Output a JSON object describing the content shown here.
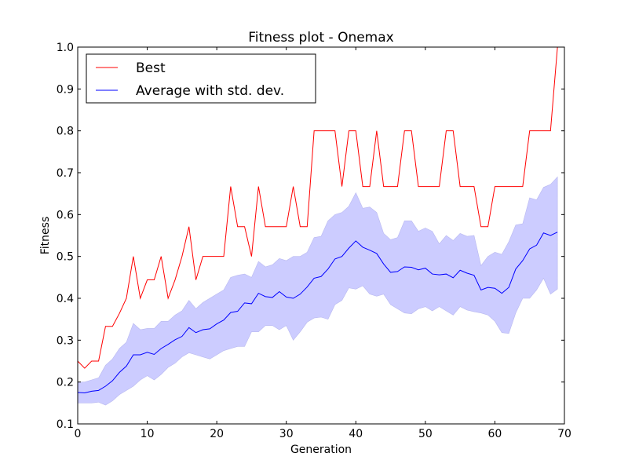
{
  "chart_data": {
    "type": "line",
    "title": "Fitness plot - Onemax",
    "xlabel": "Generation",
    "ylabel": "Fitness",
    "xlim": [
      0,
      70
    ],
    "ylim": [
      0.1,
      1.0
    ],
    "xticks": [
      0,
      10,
      20,
      30,
      40,
      50,
      60,
      70
    ],
    "yticks": [
      0.1,
      0.2,
      0.3,
      0.4,
      0.5,
      0.6,
      0.7,
      0.8,
      0.9,
      1.0
    ],
    "xtick_labels": [
      "0",
      "10",
      "20",
      "30",
      "40",
      "50",
      "60",
      "70"
    ],
    "ytick_labels": [
      "0.1",
      "0.2",
      "0.3",
      "0.4",
      "0.5",
      "0.6",
      "0.7",
      "0.8",
      "0.9",
      "1.0"
    ],
    "grid": false,
    "legend_position": "top-left",
    "x": [
      0,
      1,
      2,
      3,
      4,
      5,
      6,
      7,
      8,
      9,
      10,
      11,
      12,
      13,
      14,
      15,
      16,
      17,
      18,
      19,
      20,
      21,
      22,
      23,
      24,
      25,
      26,
      27,
      28,
      29,
      30,
      31,
      32,
      33,
      34,
      35,
      36,
      37,
      38,
      39,
      40,
      41,
      42,
      43,
      44,
      45,
      46,
      47,
      48,
      49,
      50,
      51,
      52,
      53,
      54,
      55,
      56,
      57,
      58,
      59,
      60,
      61,
      62,
      63,
      64,
      65,
      66,
      67,
      68,
      69
    ],
    "series": [
      {
        "name": "Best",
        "color": "#ff0000",
        "values": [
          0.25,
          0.233,
          0.25,
          0.25,
          0.333,
          0.333,
          0.364,
          0.4,
          0.5,
          0.4,
          0.444,
          0.444,
          0.5,
          0.4,
          0.444,
          0.5,
          0.571,
          0.444,
          0.5,
          0.5,
          0.5,
          0.5,
          0.667,
          0.571,
          0.571,
          0.5,
          0.667,
          0.571,
          0.571,
          0.571,
          0.571,
          0.667,
          0.571,
          0.571,
          0.8,
          0.8,
          0.8,
          0.8,
          0.667,
          0.8,
          0.8,
          0.667,
          0.667,
          0.8,
          0.667,
          0.667,
          0.667,
          0.8,
          0.8,
          0.667,
          0.667,
          0.667,
          0.667,
          0.8,
          0.8,
          0.667,
          0.667,
          0.667,
          0.571,
          0.571,
          0.667,
          0.667,
          0.667,
          0.667,
          0.667,
          0.8,
          0.8,
          0.8,
          0.8,
          1.0
        ]
      },
      {
        "name": "Average with std. dev.",
        "color": "#0000ff",
        "band_color": "#ccccff",
        "values": [
          0.175,
          0.174,
          0.178,
          0.18,
          0.19,
          0.203,
          0.223,
          0.238,
          0.265,
          0.265,
          0.271,
          0.266,
          0.28,
          0.29,
          0.301,
          0.309,
          0.33,
          0.318,
          0.325,
          0.327,
          0.339,
          0.348,
          0.366,
          0.369,
          0.389,
          0.387,
          0.412,
          0.404,
          0.402,
          0.416,
          0.403,
          0.4,
          0.41,
          0.427,
          0.448,
          0.452,
          0.47,
          0.494,
          0.5,
          0.52,
          0.537,
          0.522,
          0.515,
          0.507,
          0.482,
          0.462,
          0.464,
          0.475,
          0.474,
          0.468,
          0.472,
          0.458,
          0.456,
          0.458,
          0.449,
          0.467,
          0.46,
          0.455,
          0.42,
          0.426,
          0.424,
          0.412,
          0.426,
          0.47,
          0.49,
          0.518,
          0.527,
          0.556,
          0.55,
          0.558
        ],
        "upper": [
          0.2,
          0.2,
          0.205,
          0.21,
          0.24,
          0.255,
          0.28,
          0.295,
          0.34,
          0.325,
          0.328,
          0.328,
          0.345,
          0.345,
          0.36,
          0.37,
          0.395,
          0.375,
          0.39,
          0.4,
          0.41,
          0.42,
          0.45,
          0.455,
          0.458,
          0.45,
          0.488,
          0.475,
          0.48,
          0.495,
          0.49,
          0.5,
          0.5,
          0.51,
          0.545,
          0.548,
          0.585,
          0.6,
          0.605,
          0.62,
          0.652,
          0.615,
          0.618,
          0.605,
          0.555,
          0.54,
          0.545,
          0.585,
          0.585,
          0.56,
          0.568,
          0.56,
          0.53,
          0.55,
          0.538,
          0.555,
          0.548,
          0.55,
          0.478,
          0.5,
          0.51,
          0.505,
          0.535,
          0.575,
          0.578,
          0.64,
          0.635,
          0.665,
          0.672,
          0.69
        ],
        "lower": [
          0.15,
          0.15,
          0.15,
          0.152,
          0.145,
          0.155,
          0.17,
          0.18,
          0.19,
          0.205,
          0.215,
          0.205,
          0.218,
          0.235,
          0.245,
          0.26,
          0.27,
          0.265,
          0.26,
          0.255,
          0.265,
          0.275,
          0.28,
          0.285,
          0.285,
          0.32,
          0.32,
          0.335,
          0.335,
          0.325,
          0.335,
          0.3,
          0.32,
          0.343,
          0.353,
          0.355,
          0.35,
          0.385,
          0.395,
          0.425,
          0.422,
          0.43,
          0.41,
          0.405,
          0.41,
          0.385,
          0.375,
          0.365,
          0.363,
          0.375,
          0.38,
          0.37,
          0.38,
          0.37,
          0.36,
          0.38,
          0.372,
          0.368,
          0.365,
          0.36,
          0.345,
          0.318,
          0.316,
          0.365,
          0.4,
          0.4,
          0.42,
          0.448,
          0.41,
          0.422
        ]
      }
    ]
  }
}
